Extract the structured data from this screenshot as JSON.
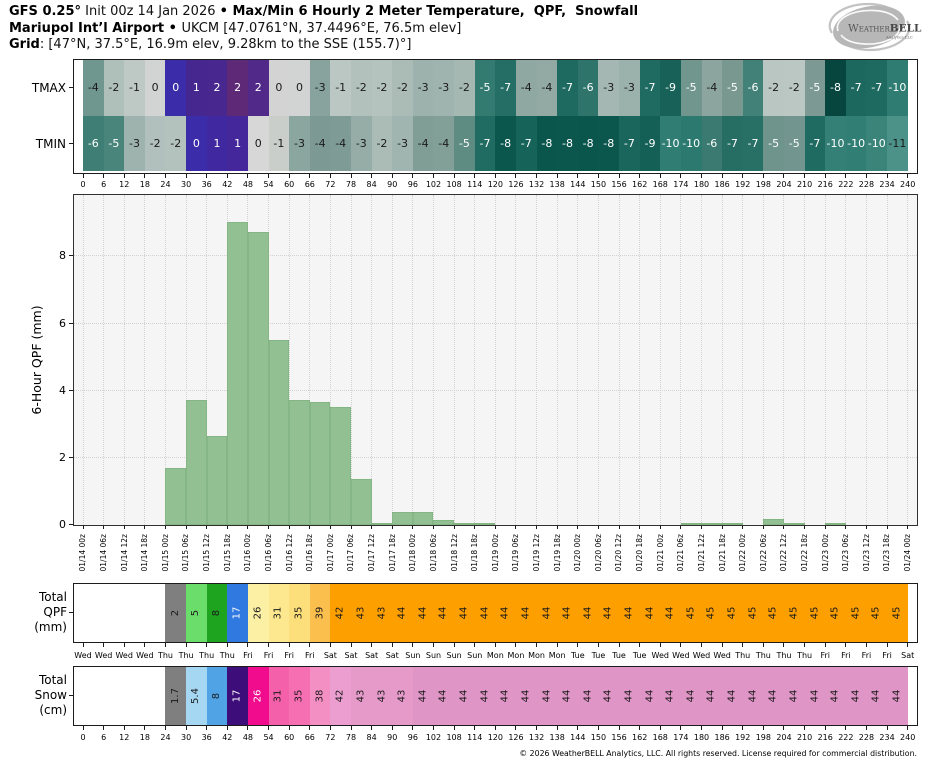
{
  "header": {
    "lines": [
      {
        "parts": [
          {
            "text": "GFS 0.25°",
            "bold": true
          },
          {
            "text": " Init 00z 14 Jan 2026 ",
            "bold": false
          },
          {
            "text": "• ",
            "bold": true
          },
          {
            "text": "Max/Min 6 Hourly 2 Meter Temperature,  QPF,  Snowfall",
            "bold": true
          }
        ]
      },
      {
        "parts": [
          {
            "text": "Mariupol Int’l Airport",
            "bold": true
          },
          {
            "text": " • ",
            "bold": true
          },
          {
            "text": "UKCM [47.0761°N, 37.4496°E, 76.5m elev]",
            "bold": false
          }
        ]
      },
      {
        "parts": [
          {
            "text": "Grid",
            "bold": true
          },
          {
            "text": ": [47°N, 37.5°E, 16.9m elev, 9.28km to the SSE (155.7)°]",
            "bold": false
          }
        ]
      }
    ]
  },
  "logo": {
    "word_start": "W",
    "word_mid": "EATHER",
    "word_end": "BELL",
    "subtext": "Analytics LLC"
  },
  "chart_data": [
    {
      "type": "heatmap",
      "id": "temp",
      "title": "Max/Min 6 Hourly 2 Meter Temperature (°C)",
      "x_ticks": [
        0,
        6,
        12,
        18,
        24,
        30,
        36,
        42,
        48,
        54,
        60,
        66,
        72,
        78,
        84,
        90,
        96,
        102,
        108,
        114,
        120,
        126,
        132,
        138,
        144,
        150,
        156,
        162,
        168,
        174,
        180,
        186,
        192,
        198,
        204,
        210,
        216,
        222,
        228,
        234,
        240
      ],
      "rows": [
        {
          "label": "TMAX",
          "values": [
            -4,
            -2,
            -1,
            0,
            0,
            1,
            2,
            2,
            2,
            0,
            0,
            -3,
            -1,
            -2,
            -2,
            -2,
            -3,
            -3,
            -2,
            -5,
            -7,
            -4,
            -4,
            -7,
            -6,
            -3,
            -3,
            -7,
            -9,
            -5,
            -4,
            -5,
            -6,
            -2,
            -2,
            -5,
            -8,
            -7,
            -7,
            -10
          ],
          "colors": [
            "#6f968f",
            "#afc0bb",
            "#bec9c5",
            "#d2d3d3",
            "#3b2ca9",
            "#46268f",
            "#48288f",
            "#5e2a78",
            "#512a89",
            "#d2d3d2",
            "#d2d3d3",
            "#88a39d",
            "#bac7c3",
            "#b2c1bc",
            "#b5c3bf",
            "#abbcb7",
            "#9db2ac",
            "#9fb4ae",
            "#a6b8b2",
            "#337a71",
            "#256e65",
            "#90a8a2",
            "#93aaa4",
            "#1e6960",
            "#2f746b",
            "#a4b7b2",
            "#9bb1ab",
            "#1f6a61",
            "#176158",
            "#71968e",
            "#8ca59e",
            "#789890",
            "#428178",
            "#bac6c2",
            "#bbc7c3",
            "#7c9a93",
            "#07463f",
            "#1d685e",
            "#1f6a60",
            "#2f7d72"
          ],
          "text_colors": [
            "k",
            "k",
            "k",
            "k",
            "w",
            "w",
            "w",
            "w",
            "w",
            "k",
            "k",
            "k",
            "k",
            "k",
            "k",
            "k",
            "k",
            "k",
            "k",
            "w",
            "w",
            "k",
            "k",
            "w",
            "w",
            "k",
            "k",
            "w",
            "w",
            "w",
            "k",
            "w",
            "w",
            "k",
            "k",
            "w",
            "w",
            "w",
            "w",
            "w"
          ]
        },
        {
          "label": "TMIN",
          "values": [
            -6,
            -5,
            -3,
            -2,
            -2,
            0,
            1,
            1,
            0,
            -1,
            -3,
            -4,
            -4,
            -3,
            -2,
            -3,
            -4,
            -4,
            -5,
            -7,
            -8,
            -7,
            -8,
            -8,
            -8,
            -8,
            -7,
            -9,
            -10,
            -10,
            -6,
            -7,
            -7,
            -5,
            -5,
            -7,
            -10,
            -10,
            -10,
            -11
          ],
          "colors": [
            "#3e7e74",
            "#4a857b",
            "#9eb3ae",
            "#b1c0bc",
            "#b4c2be",
            "#3b2caa",
            "#4028a1",
            "#44289b",
            "#d6d7d6",
            "#c9cecb",
            "#8ba59f",
            "#7c9a93",
            "#7e9c95",
            "#96ada7",
            "#abbcb7",
            "#a0b5af",
            "#809d96",
            "#829f98",
            "#5e8c83",
            "#216c62",
            "#0b574e",
            "#16635a",
            "#0a564d",
            "#0b574e",
            "#0a554c",
            "#0b564d",
            "#1b665c",
            "#145f56",
            "#307e73",
            "#2b796f",
            "#3a7a70",
            "#266e64",
            "#286f65",
            "#6e948c",
            "#72968f",
            "#206b61",
            "#348077",
            "#317e74",
            "#3a847a",
            "#4c9288"
          ],
          "text_colors": [
            "w",
            "w",
            "k",
            "k",
            "k",
            "w",
            "w",
            "w",
            "k",
            "k",
            "k",
            "k",
            "k",
            "k",
            "k",
            "k",
            "k",
            "k",
            "w",
            "w",
            "w",
            "w",
            "w",
            "w",
            "w",
            "w",
            "w",
            "w",
            "w",
            "w",
            "w",
            "w",
            "w",
            "w",
            "w",
            "w",
            "w",
            "w",
            "w",
            "k"
          ]
        }
      ]
    },
    {
      "type": "bar",
      "id": "qpf",
      "ylabel": "6-Hour QPF (mm)",
      "yticks": [
        0,
        2,
        4,
        6,
        8
      ],
      "ylim": [
        0,
        9.86
      ],
      "x_tick_labels": [
        "01/14 00z",
        "01/14 06z",
        "01/14 12z",
        "01/14 18z",
        "01/15 00z",
        "01/15 06z",
        "01/15 12z",
        "01/15 18z",
        "01/16 00z",
        "01/16 06z",
        "01/16 12z",
        "01/16 18z",
        "01/17 00z",
        "01/17 06z",
        "01/17 12z",
        "01/17 18z",
        "01/18 00z",
        "01/18 06z",
        "01/18 12z",
        "01/18 18z",
        "01/19 00z",
        "01/19 06z",
        "01/19 12z",
        "01/19 18z",
        "01/20 00z",
        "01/20 06z",
        "01/20 12z",
        "01/20 18z",
        "01/21 00z",
        "01/21 06z",
        "01/21 12z",
        "01/21 18z",
        "01/22 00z",
        "01/22 06z",
        "01/22 12z",
        "01/22 18z",
        "01/23 00z",
        "01/23 06z",
        "01/23 12z",
        "01/23 18z",
        "01/24 00z"
      ],
      "values": [
        0,
        0,
        0,
        0,
        1.7,
        3.7,
        2.65,
        9.0,
        8.7,
        5.5,
        3.7,
        3.65,
        3.5,
        1.35,
        0.05,
        0.38,
        0.38,
        0.16,
        0.06,
        0.06,
        0,
        0,
        0,
        0,
        0,
        0,
        0,
        0,
        0,
        0.07,
        0.07,
        0.07,
        0,
        0.17,
        0.06,
        0,
        0.06,
        0,
        0,
        0
      ],
      "bar_color": "#92c092",
      "bar_edge_color": "#7db07d",
      "plot_bg": "#f5f5f5",
      "grid_color": "#d4d4d4"
    },
    {
      "type": "heatmap",
      "id": "total_qpf",
      "label_lines": [
        "Total",
        "QPF",
        "(mm)"
      ],
      "x_tick_labels": [
        "Wed",
        "Wed",
        "Wed",
        "Wed",
        "Thu",
        "Thu",
        "Thu",
        "Thu",
        "Fri",
        "Fri",
        "Fri",
        "Fri",
        "Sat",
        "Sat",
        "Sat",
        "Sat",
        "Sun",
        "Sun",
        "Sun",
        "Sun",
        "Mon",
        "Mon",
        "Mon",
        "Mon",
        "Tue",
        "Tue",
        "Tue",
        "Tue",
        "Wed",
        "Wed",
        "Wed",
        "Wed",
        "Thu",
        "Thu",
        "Thu",
        "Thu",
        "Fri",
        "Fri",
        "Fri",
        "Fri",
        "Sat"
      ],
      "values": [
        null,
        null,
        null,
        null,
        2,
        5,
        8,
        17,
        26,
        31,
        35,
        39,
        42,
        43,
        43,
        44,
        44,
        44,
        44,
        44,
        44,
        44,
        44,
        44,
        44,
        44,
        44,
        44,
        44,
        45,
        45,
        45,
        45,
        45,
        45,
        45,
        45,
        45,
        45,
        45
      ],
      "colors": [
        null,
        null,
        null,
        null,
        "#7f7f7f",
        "#6bdd6b",
        "#1fa41f",
        "#3079e1",
        "#fcf0a5",
        "#fde88f",
        "#fcdf7a",
        "#fbbf4d",
        "#fe9f00",
        "#fe9f00",
        "#fe9f00",
        "#fe9f00",
        "#fe9f00",
        "#fe9f00",
        "#fe9f00",
        "#fe9f00",
        "#fe9f00",
        "#fe9f00",
        "#fe9f00",
        "#fe9f00",
        "#fe9f00",
        "#fe9f00",
        "#fe9f00",
        "#fe9f00",
        "#fe9f00",
        "#fe9f00",
        "#fe9f00",
        "#fe9f00",
        "#fe9f00",
        "#fe9f00",
        "#fe9f00",
        "#fe9f00",
        "#fe9f00",
        "#fe9f00",
        "#fe9f00",
        "#fe9f00"
      ],
      "text_colors": [
        null,
        null,
        null,
        null,
        "k",
        "k",
        "k",
        "w",
        "k",
        "k",
        "k",
        "k",
        "k",
        "k",
        "k",
        "k",
        "k",
        "k",
        "k",
        "k",
        "k",
        "k",
        "k",
        "k",
        "k",
        "k",
        "k",
        "k",
        "k",
        "k",
        "k",
        "k",
        "k",
        "k",
        "k",
        "k",
        "k",
        "k",
        "k",
        "k"
      ]
    },
    {
      "type": "heatmap",
      "id": "total_snow",
      "label_lines": [
        "Total",
        "Snow",
        "(cm)"
      ],
      "x_ticks": [
        0,
        6,
        12,
        18,
        24,
        30,
        36,
        42,
        48,
        54,
        60,
        66,
        72,
        78,
        84,
        90,
        96,
        102,
        108,
        114,
        120,
        126,
        132,
        138,
        144,
        150,
        156,
        162,
        168,
        174,
        180,
        186,
        192,
        198,
        204,
        210,
        216,
        222,
        228,
        234,
        240
      ],
      "values": [
        null,
        null,
        null,
        null,
        1.7,
        5.4,
        8,
        17,
        26,
        31,
        35,
        38,
        42,
        43,
        43,
        43,
        44,
        44,
        44,
        44,
        44,
        44,
        44,
        44,
        44,
        44,
        44,
        44,
        44,
        44,
        44,
        44,
        44,
        44,
        44,
        44,
        44,
        44,
        44,
        44
      ],
      "colors": [
        null,
        null,
        null,
        null,
        "#7f7f7f",
        "#a5d7f3",
        "#50a4e6",
        "#3d0e79",
        "#f00c8c",
        "#f560aa",
        "#f76fb3",
        "#f38fc3",
        "#ec9ed0",
        "#e59aca",
        "#e59aca",
        "#e59aca",
        "#e095c7",
        "#e095c7",
        "#e095c7",
        "#e095c7",
        "#e095c7",
        "#e095c7",
        "#e095c7",
        "#e095c7",
        "#e095c7",
        "#e095c7",
        "#e095c7",
        "#e095c7",
        "#e095c7",
        "#e095c7",
        "#e095c7",
        "#e095c7",
        "#e095c7",
        "#e095c7",
        "#e095c7",
        "#e095c7",
        "#e095c7",
        "#e095c7",
        "#e095c7",
        "#e095c7"
      ],
      "text_colors": [
        null,
        null,
        null,
        null,
        "k",
        "k",
        "k",
        "w",
        "w",
        "k",
        "k",
        "k",
        "k",
        "k",
        "k",
        "k",
        "k",
        "k",
        "k",
        "k",
        "k",
        "k",
        "k",
        "k",
        "k",
        "k",
        "k",
        "k",
        "k",
        "k",
        "k",
        "k",
        "k",
        "k",
        "k",
        "k",
        "k",
        "k",
        "k",
        "k"
      ]
    }
  ],
  "footer": {
    "text": "© 2026 WeatherBELL Analytics, LLC. All rights reserved. License required for commercial distribution."
  }
}
